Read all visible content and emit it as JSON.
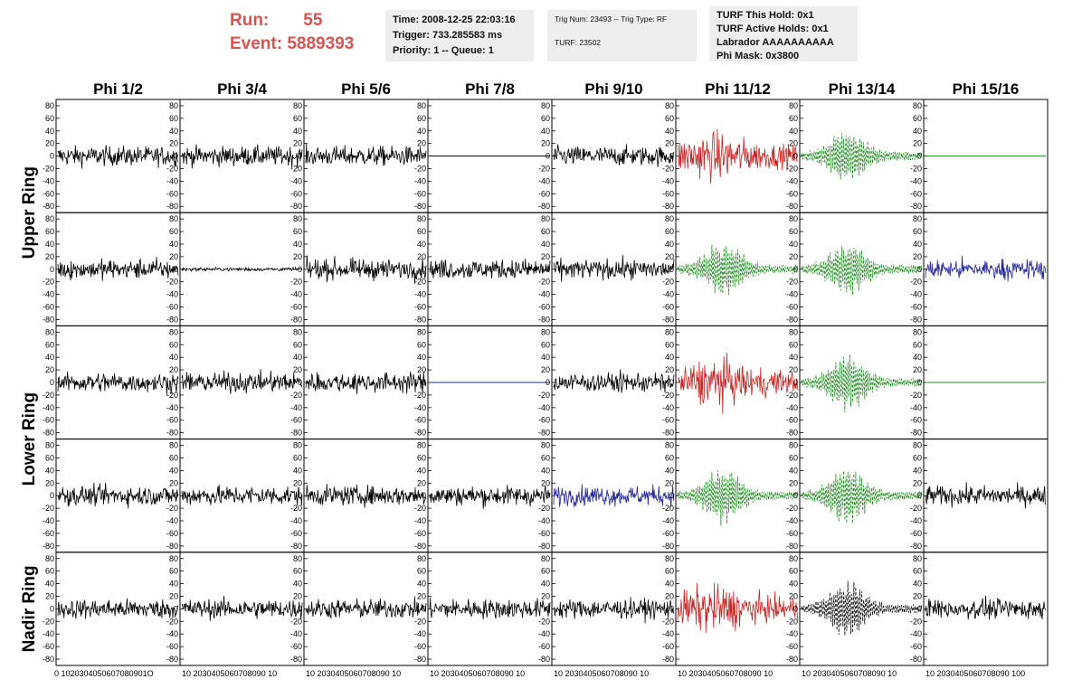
{
  "header": {
    "run_label": "Run:",
    "run_value": "55",
    "event_label": "Event:",
    "event_value": "5889393",
    "time_lines": [
      "Time: 2008-12-25 22:03:16",
      "Trigger: 733.285583 ms",
      "Priority: 1 -- Queue: 1"
    ],
    "trig_lines": [
      "Trig Num: 23493 -- Trig Type: RF",
      "TURF: 23502"
    ],
    "turf_lines": [
      "TURF This Hold: 0x1",
      "TURF Active Holds: 0x1",
      "Labrador AAAAAAAAAA",
      "Phi Mask: 0x3800"
    ]
  },
  "chart_data": {
    "type": "line",
    "columns": [
      "Phi 1/2",
      "Phi 3/4",
      "Phi 5/6",
      "Phi 7/8",
      "Phi 9/10",
      "Phi 11/12",
      "Phi 13/14",
      "Phi 15/16"
    ],
    "rings": [
      "Upper Ring",
      "Lower Ring",
      "Nadir Ring"
    ],
    "ylim": [
      -90,
      90
    ],
    "y_ticks": [
      -80,
      -60,
      -40,
      -20,
      0,
      20,
      40,
      60,
      80
    ],
    "xlim": [
      0,
      100
    ],
    "x_tick_labels": [
      "0",
      "10",
      "20",
      "30",
      "40",
      "50",
      "60",
      "70",
      "80",
      "90",
      "100"
    ],
    "x_tick_strings": [
      "0 1020304050607080901O",
      "10 2030405060708090 10",
      "10 2030405060708090 10",
      "10 2030405060708090 10",
      "10 2030405060708090 10",
      "10 2030405060708090 10",
      "10 2030405060708090 10",
      "10 2030405060708090 100"
    ],
    "colors": {
      "black": "#000000",
      "red": "#cc2222",
      "green": "#1a8a1a",
      "blue": "#22229a"
    },
    "panels": [
      [
        "black",
        "black",
        "black",
        "flat-black",
        "black",
        "red",
        "green-dashed",
        "flat-green"
      ],
      [
        "black",
        "black-small",
        "black",
        "black",
        "black",
        "green-dashed",
        "green-dashed",
        "blue"
      ],
      [
        "black",
        "black",
        "black",
        "flat-blue",
        "black",
        "red",
        "green-dashed",
        "flat-green"
      ],
      [
        "black",
        "black",
        "black",
        "black",
        "blue",
        "green-dashed",
        "green-dashed",
        "black"
      ],
      [
        "black",
        "black",
        "black",
        "black",
        "black",
        "red",
        "black-dashed",
        "black"
      ]
    ]
  }
}
